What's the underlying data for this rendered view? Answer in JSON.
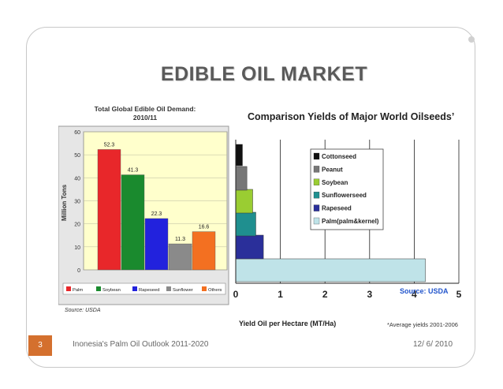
{
  "slide": {
    "title": "EDIBLE OIL MARKET",
    "page_number": "3",
    "footer_text": "Inonesia's Palm Oil Outlook 2011-2020",
    "date": "12/ 6/ 2010"
  },
  "colors": {
    "accent": "#d4702e",
    "palm": "#e8272a",
    "soybean": "#1a8a2e",
    "rapeseed": "#2222dd",
    "sunflower": "#8a8a8a",
    "others": "#f37021",
    "cottonseed": "#111111",
    "peanut": "#777777",
    "soybean_yield": "#9acd32",
    "sunflowerseed": "#1f8f8f",
    "rapeseed_yield": "#2a2f9a",
    "palm_yield": "#bfe3e8",
    "plot_bg": "#ffffcc"
  },
  "chart_data": [
    {
      "type": "bar",
      "title_line1": "Total Global Edible Oil Demand:",
      "title_line2": "2010/11",
      "ylabel": "Million Tons",
      "ylim": [
        0,
        60
      ],
      "yticks": [
        "0",
        "10",
        "20",
        "30",
        "40",
        "50",
        "60"
      ],
      "categories": [
        "Palm",
        "Soybean",
        "Rapeseed",
        "Sunflower",
        "Others"
      ],
      "values": [
        52.3,
        41.3,
        22.3,
        11.3,
        16.6
      ],
      "value_labels": [
        "52.3",
        "41.3",
        "22.3",
        "11.3",
        "16.6"
      ],
      "legend": [
        "Palm",
        "Soybean",
        "Rapeseed",
        "Sunflower",
        "Others"
      ],
      "source": "Source: USDA"
    },
    {
      "type": "bar",
      "orientation": "horizontal",
      "title": "Comparison Yields of Major World Oilseeds’",
      "xlabel": "Yield Oil per Hectare (MT/Ha)",
      "xlim": [
        0,
        5
      ],
      "xticks": [
        "0",
        "1",
        "2",
        "3",
        "4",
        "5"
      ],
      "categories": [
        "Palm(palm&kernel)",
        "Rapeseed",
        "Sunflowerseed",
        "Soybean",
        "Peanut",
        "Cottonseed"
      ],
      "values": [
        4.25,
        0.62,
        0.45,
        0.38,
        0.25,
        0.15
      ],
      "legend": [
        "Cottonseed",
        "Peanut",
        "Soybean",
        "Sunflowerseed",
        "Rapeseed",
        "Palm(palm&kernel)"
      ],
      "source": "Source: USDA",
      "footnote": "*Average yields 2001-2006"
    }
  ]
}
